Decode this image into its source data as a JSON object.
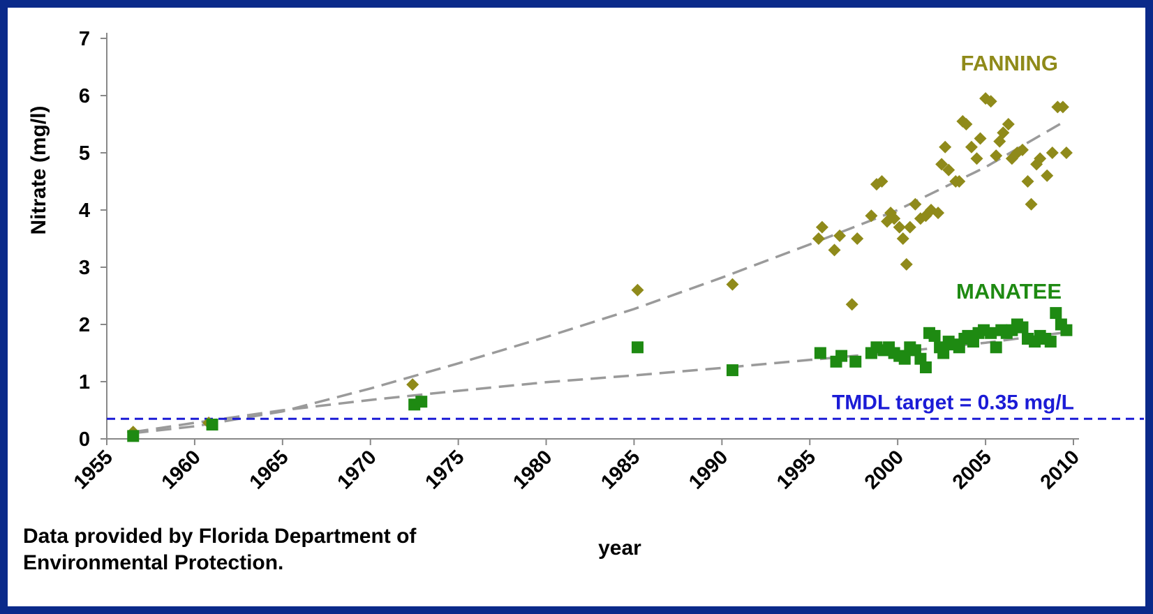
{
  "chart_data": {
    "type": "scatter",
    "title": "",
    "xlabel": "year",
    "ylabel": "Nitrate (mg/l)",
    "xlim": [
      1955,
      2010
    ],
    "ylim": [
      0,
      7
    ],
    "x_ticks": [
      1955,
      1960,
      1965,
      1970,
      1975,
      1980,
      1985,
      1990,
      1995,
      2000,
      2005,
      2010
    ],
    "y_ticks": [
      0,
      1,
      2,
      3,
      4,
      5,
      6,
      7
    ],
    "grid": false,
    "legend": "labels placed next to series at right",
    "series": [
      {
        "name": "FANNING",
        "marker": "diamond",
        "color": "#8f8a1a",
        "points": [
          [
            1956.5,
            0.12
          ],
          [
            1960.8,
            0.28
          ],
          [
            1972.4,
            0.95
          ],
          [
            1985.2,
            2.6
          ],
          [
            1990.6,
            2.7
          ],
          [
            1995.5,
            3.5
          ],
          [
            1995.7,
            3.7
          ],
          [
            1996.4,
            3.3
          ],
          [
            1996.7,
            3.55
          ],
          [
            1997.4,
            2.35
          ],
          [
            1997.7,
            3.5
          ],
          [
            1998.5,
            3.9
          ],
          [
            1998.8,
            4.45
          ],
          [
            1999.1,
            4.5
          ],
          [
            1999.4,
            3.8
          ],
          [
            1999.6,
            3.95
          ],
          [
            1999.8,
            3.85
          ],
          [
            2000.1,
            3.7
          ],
          [
            2000.3,
            3.5
          ],
          [
            2000.5,
            3.05
          ],
          [
            2000.7,
            3.7
          ],
          [
            2001.0,
            4.1
          ],
          [
            2001.3,
            3.85
          ],
          [
            2001.6,
            3.9
          ],
          [
            2001.9,
            4.0
          ],
          [
            2002.3,
            3.95
          ],
          [
            2002.5,
            4.8
          ],
          [
            2002.7,
            5.1
          ],
          [
            2002.9,
            4.7
          ],
          [
            2003.3,
            4.5
          ],
          [
            2003.5,
            4.5
          ],
          [
            2003.7,
            5.55
          ],
          [
            2003.9,
            5.5
          ],
          [
            2004.2,
            5.1
          ],
          [
            2004.5,
            4.9
          ],
          [
            2004.7,
            5.25
          ],
          [
            2005.0,
            5.95
          ],
          [
            2005.3,
            5.9
          ],
          [
            2005.6,
            4.95
          ],
          [
            2005.8,
            5.2
          ],
          [
            2006.0,
            5.35
          ],
          [
            2006.3,
            5.5
          ],
          [
            2006.5,
            4.9
          ],
          [
            2006.8,
            5.0
          ],
          [
            2007.1,
            5.05
          ],
          [
            2007.4,
            4.5
          ],
          [
            2007.6,
            4.1
          ],
          [
            2007.9,
            4.8
          ],
          [
            2008.1,
            4.9
          ],
          [
            2008.5,
            4.6
          ],
          [
            2008.8,
            5.0
          ],
          [
            2009.1,
            5.8
          ],
          [
            2009.4,
            5.8
          ],
          [
            2009.6,
            5.0
          ]
        ],
        "trend": [
          [
            1956.5,
            0.1
          ],
          [
            1960,
            0.22
          ],
          [
            1965,
            0.48
          ],
          [
            1970,
            0.88
          ],
          [
            1975,
            1.32
          ],
          [
            1980,
            1.78
          ],
          [
            1985,
            2.27
          ],
          [
            1990,
            2.82
          ],
          [
            1995,
            3.4
          ],
          [
            2000,
            4.0
          ],
          [
            2005,
            4.75
          ],
          [
            2009.5,
            5.55
          ]
        ]
      },
      {
        "name": "MANATEE",
        "marker": "square",
        "color": "#1e8a12",
        "points": [
          [
            1956.5,
            0.05
          ],
          [
            1961.0,
            0.25
          ],
          [
            1972.5,
            0.6
          ],
          [
            1972.9,
            0.65
          ],
          [
            1985.2,
            1.6
          ],
          [
            1990.6,
            1.2
          ],
          [
            1995.6,
            1.5
          ],
          [
            1996.5,
            1.35
          ],
          [
            1996.8,
            1.45
          ],
          [
            1997.6,
            1.35
          ],
          [
            1998.5,
            1.5
          ],
          [
            1998.8,
            1.6
          ],
          [
            1999.2,
            1.55
          ],
          [
            1999.5,
            1.6
          ],
          [
            1999.8,
            1.5
          ],
          [
            2000.1,
            1.45
          ],
          [
            2000.4,
            1.4
          ],
          [
            2000.7,
            1.6
          ],
          [
            2001.0,
            1.55
          ],
          [
            2001.3,
            1.4
          ],
          [
            2001.6,
            1.25
          ],
          [
            2001.8,
            1.85
          ],
          [
            2002.1,
            1.8
          ],
          [
            2002.4,
            1.6
          ],
          [
            2002.6,
            1.5
          ],
          [
            2002.9,
            1.7
          ],
          [
            2003.2,
            1.65
          ],
          [
            2003.5,
            1.6
          ],
          [
            2003.8,
            1.75
          ],
          [
            2004.0,
            1.8
          ],
          [
            2004.3,
            1.7
          ],
          [
            2004.6,
            1.85
          ],
          [
            2004.9,
            1.9
          ],
          [
            2005.3,
            1.85
          ],
          [
            2005.6,
            1.6
          ],
          [
            2005.9,
            1.9
          ],
          [
            2006.2,
            1.85
          ],
          [
            2006.5,
            1.9
          ],
          [
            2006.8,
            2.0
          ],
          [
            2007.1,
            1.95
          ],
          [
            2007.4,
            1.75
          ],
          [
            2007.8,
            1.7
          ],
          [
            2008.1,
            1.8
          ],
          [
            2008.4,
            1.75
          ],
          [
            2008.7,
            1.7
          ],
          [
            2009.0,
            2.2
          ],
          [
            2009.3,
            2.0
          ],
          [
            2009.6,
            1.9
          ]
        ],
        "trend": [
          [
            1956.5,
            0.12
          ],
          [
            1960,
            0.28
          ],
          [
            1965,
            0.5
          ],
          [
            1970,
            0.68
          ],
          [
            1975,
            0.84
          ],
          [
            1980,
            0.99
          ],
          [
            1985,
            1.11
          ],
          [
            1990,
            1.24
          ],
          [
            1995,
            1.38
          ],
          [
            2000,
            1.52
          ],
          [
            2005,
            1.68
          ],
          [
            2009.5,
            1.86
          ]
        ]
      }
    ],
    "reference_line": {
      "label": "TMDL target = 0.35 mg/L",
      "value": 0.35,
      "color": "#1b1bd6",
      "style": "dashed"
    },
    "annotations": [
      "Data provided by Florida Department of",
      "Environmental Protection."
    ]
  }
}
